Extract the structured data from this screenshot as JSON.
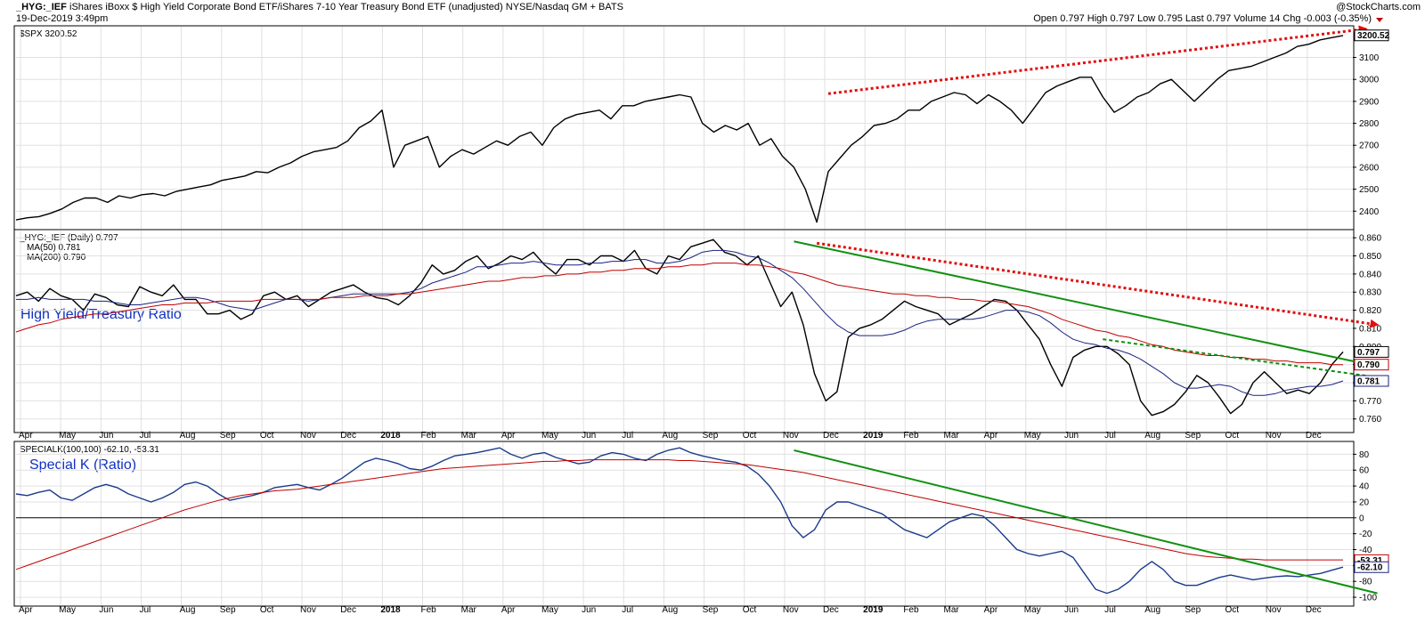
{
  "header": {
    "symbol": "_HYG:_IEF",
    "description": "iShares iBoxx $ High Yield Corporate Bond ETF/iShares 7-10 Year Treasury Bond ETF (unadjusted) NYSE/Nasdaq GM + BATS",
    "datetime": "19-Dec-2019 3:49pm",
    "copyright": "@StockCharts.com",
    "quote": "Open 0.797  High 0.797  Low 0.795  Last 0.797  Volume 14  Chg -0.003 (-0.35%)"
  },
  "colors": {
    "price": "#000000",
    "ma50": "#1a237e",
    "ma200": "#c00000",
    "trend_green": "#109010",
    "trend_red": "#e01010",
    "annotation": "#1030c0",
    "panel_bg": "#ffffff"
  },
  "months": [
    "Apr",
    "May",
    "Jun",
    "Jul",
    "Aug",
    "Sep",
    "Oct",
    "Nov",
    "Dec",
    "2018",
    "Feb",
    "Mar",
    "Apr",
    "May",
    "Jun",
    "Jul",
    "Aug",
    "Sep",
    "Oct",
    "Nov",
    "Dec",
    "2019",
    "Feb",
    "Mar",
    "Apr",
    "May",
    "Jun",
    "Jul",
    "Aug",
    "Sep",
    "Oct",
    "Nov",
    "Dec"
  ],
  "chart_data": [
    {
      "type": "line",
      "panel": "top",
      "legend": "$SPX 3200.52",
      "last_label": "3200.52",
      "yticks": [
        2400,
        2500,
        2600,
        2700,
        2800,
        2900,
        3000,
        3100
      ],
      "ylim": [
        2320,
        3240
      ],
      "series": [
        {
          "name": "$SPX",
          "values": [
            2360,
            2370,
            2375,
            2390,
            2410,
            2440,
            2460,
            2460,
            2440,
            2470,
            2460,
            2475,
            2480,
            2470,
            2490,
            2500,
            2510,
            2520,
            2540,
            2550,
            2560,
            2580,
            2575,
            2600,
            2620,
            2650,
            2670,
            2680,
            2690,
            2720,
            2780,
            2810,
            2860,
            2600,
            2700,
            2720,
            2740,
            2600,
            2650,
            2680,
            2660,
            2690,
            2720,
            2700,
            2740,
            2760,
            2700,
            2780,
            2820,
            2840,
            2850,
            2860,
            2820,
            2880,
            2880,
            2900,
            2910,
            2920,
            2930,
            2920,
            2800,
            2760,
            2790,
            2770,
            2800,
            2700,
            2730,
            2650,
            2600,
            2500,
            2350,
            2580,
            2640,
            2700,
            2740,
            2790,
            2800,
            2820,
            2860,
            2860,
            2900,
            2920,
            2940,
            2930,
            2890,
            2930,
            2900,
            2860,
            2800,
            2870,
            2940,
            2970,
            2990,
            3010,
            3010,
            2920,
            2850,
            2880,
            2920,
            2940,
            2980,
            3000,
            2950,
            2900,
            2950,
            3000,
            3040,
            3050,
            3060,
            3080,
            3100,
            3120,
            3150,
            3160,
            3180,
            3190,
            3200
          ]
        }
      ],
      "trendlines": [
        {
          "color": "red",
          "style": "dotted",
          "from": [
            71,
            2935
          ],
          "to": [
            118,
            3230
          ],
          "arrow": true
        }
      ]
    },
    {
      "type": "line",
      "panel": "middle",
      "legend": "_HYG:_IEF (Daily) 0.797",
      "ma50_label": "MA(50) 0.781",
      "ma200_label": "MA(200) 0.790",
      "last_label": "0.797",
      "ma200_last": "0.790",
      "ma50_last": "0.781",
      "annotation": "High Yield/Treasury Ratio",
      "yticks": [
        0.76,
        0.77,
        0.78,
        0.79,
        0.8,
        0.81,
        0.82,
        0.83,
        0.84,
        0.85,
        0.86
      ],
      "ylim": [
        0.753,
        0.864
      ],
      "series": [
        {
          "name": "_HYG:_IEF",
          "values": [
            0.828,
            0.83,
            0.825,
            0.832,
            0.828,
            0.826,
            0.82,
            0.829,
            0.827,
            0.823,
            0.822,
            0.833,
            0.83,
            0.828,
            0.834,
            0.826,
            0.826,
            0.818,
            0.818,
            0.82,
            0.815,
            0.818,
            0.828,
            0.83,
            0.826,
            0.828,
            0.822,
            0.826,
            0.83,
            0.832,
            0.834,
            0.83,
            0.827,
            0.826,
            0.823,
            0.828,
            0.835,
            0.845,
            0.84,
            0.842,
            0.847,
            0.85,
            0.843,
            0.846,
            0.85,
            0.848,
            0.852,
            0.845,
            0.84,
            0.848,
            0.848,
            0.845,
            0.85,
            0.85,
            0.847,
            0.853,
            0.843,
            0.84,
            0.85,
            0.848,
            0.855,
            0.857,
            0.859,
            0.852,
            0.85,
            0.845,
            0.85,
            0.836,
            0.822,
            0.83,
            0.812,
            0.785,
            0.77,
            0.775,
            0.805,
            0.81,
            0.812,
            0.815,
            0.82,
            0.825,
            0.822,
            0.82,
            0.818,
            0.812,
            0.815,
            0.818,
            0.822,
            0.826,
            0.825,
            0.82,
            0.812,
            0.804,
            0.79,
            0.778,
            0.794,
            0.798,
            0.8,
            0.8,
            0.796,
            0.79,
            0.77,
            0.762,
            0.764,
            0.768,
            0.775,
            0.784,
            0.78,
            0.772,
            0.763,
            0.768,
            0.78,
            0.786,
            0.78,
            0.774,
            0.776,
            0.774,
            0.78,
            0.79,
            0.797
          ]
        },
        {
          "name": "MA(50)",
          "values": [
            0.826,
            0.826,
            0.827,
            0.826,
            0.826,
            0.826,
            0.826,
            0.825,
            0.825,
            0.824,
            0.823,
            0.823,
            0.824,
            0.825,
            0.826,
            0.827,
            0.827,
            0.826,
            0.824,
            0.822,
            0.821,
            0.82,
            0.822,
            0.824,
            0.826,
            0.826,
            0.825,
            0.826,
            0.827,
            0.828,
            0.829,
            0.829,
            0.829,
            0.829,
            0.829,
            0.83,
            0.832,
            0.835,
            0.837,
            0.839,
            0.841,
            0.844,
            0.844,
            0.845,
            0.846,
            0.846,
            0.847,
            0.846,
            0.845,
            0.845,
            0.845,
            0.846,
            0.846,
            0.847,
            0.847,
            0.848,
            0.848,
            0.846,
            0.846,
            0.847,
            0.849,
            0.852,
            0.853,
            0.853,
            0.852,
            0.85,
            0.849,
            0.846,
            0.842,
            0.838,
            0.832,
            0.825,
            0.818,
            0.812,
            0.808,
            0.806,
            0.806,
            0.806,
            0.807,
            0.809,
            0.812,
            0.814,
            0.815,
            0.815,
            0.815,
            0.815,
            0.816,
            0.818,
            0.82,
            0.82,
            0.819,
            0.817,
            0.813,
            0.808,
            0.804,
            0.802,
            0.801,
            0.799,
            0.798,
            0.796,
            0.793,
            0.789,
            0.785,
            0.78,
            0.777,
            0.777,
            0.778,
            0.779,
            0.778,
            0.775,
            0.773,
            0.773,
            0.774,
            0.776,
            0.777,
            0.778,
            0.778,
            0.779,
            0.781
          ]
        },
        {
          "name": "MA(200)",
          "values": [
            0.808,
            0.81,
            0.812,
            0.813,
            0.815,
            0.816,
            0.817,
            0.818,
            0.818,
            0.819,
            0.82,
            0.821,
            0.822,
            0.823,
            0.823,
            0.824,
            0.824,
            0.824,
            0.825,
            0.825,
            0.825,
            0.825,
            0.826,
            0.826,
            0.826,
            0.826,
            0.826,
            0.826,
            0.827,
            0.827,
            0.827,
            0.828,
            0.828,
            0.828,
            0.829,
            0.829,
            0.83,
            0.831,
            0.832,
            0.833,
            0.834,
            0.835,
            0.836,
            0.836,
            0.837,
            0.838,
            0.838,
            0.839,
            0.839,
            0.84,
            0.84,
            0.841,
            0.841,
            0.842,
            0.842,
            0.843,
            0.843,
            0.843,
            0.844,
            0.844,
            0.845,
            0.845,
            0.846,
            0.846,
            0.846,
            0.845,
            0.845,
            0.844,
            0.843,
            0.841,
            0.84,
            0.838,
            0.836,
            0.834,
            0.833,
            0.832,
            0.831,
            0.83,
            0.829,
            0.829,
            0.828,
            0.828,
            0.827,
            0.827,
            0.826,
            0.826,
            0.825,
            0.825,
            0.824,
            0.823,
            0.822,
            0.82,
            0.818,
            0.815,
            0.813,
            0.811,
            0.809,
            0.808,
            0.806,
            0.805,
            0.803,
            0.801,
            0.8,
            0.798,
            0.797,
            0.796,
            0.795,
            0.795,
            0.794,
            0.794,
            0.793,
            0.793,
            0.792,
            0.792,
            0.791,
            0.791,
            0.791,
            0.79,
            0.79
          ]
        }
      ],
      "trendlines": [
        {
          "color": "green",
          "style": "solid",
          "from": [
            68,
            0.858
          ],
          "to": [
            119,
            0.789
          ],
          "arrow": false
        },
        {
          "color": "green",
          "style": "dashed",
          "from": [
            95,
            0.804
          ],
          "to": [
            119,
            0.783
          ],
          "arrow": false
        },
        {
          "color": "red",
          "style": "dotted",
          "from": [
            70,
            0.857
          ],
          "to": [
            119,
            0.812
          ],
          "arrow": true
        }
      ]
    },
    {
      "type": "line",
      "panel": "bottom",
      "legend": "SPECIALK(100,100) -62.10, -53.31",
      "annotation": "Special K (Ratio)",
      "last_label": "-62.10",
      "signal_last": "-53.31",
      "yticks": [
        -100,
        -80,
        -60,
        -40,
        -20,
        0,
        20,
        40,
        60,
        80
      ],
      "ylim": [
        -110,
        95
      ],
      "series": [
        {
          "name": "SPECIALK",
          "values": [
            30,
            28,
            32,
            35,
            25,
            22,
            30,
            38,
            42,
            38,
            30,
            25,
            20,
            25,
            32,
            42,
            45,
            40,
            30,
            22,
            25,
            28,
            32,
            38,
            40,
            42,
            38,
            35,
            42,
            50,
            60,
            70,
            75,
            72,
            68,
            62,
            60,
            65,
            72,
            78,
            80,
            82,
            85,
            88,
            80,
            75,
            80,
            82,
            76,
            72,
            68,
            70,
            78,
            82,
            80,
            75,
            72,
            80,
            85,
            88,
            82,
            78,
            75,
            72,
            70,
            65,
            55,
            40,
            20,
            -10,
            -25,
            -15,
            10,
            20,
            20,
            15,
            10,
            5,
            -5,
            -15,
            -20,
            -25,
            -15,
            -5,
            0,
            5,
            2,
            -10,
            -25,
            -40,
            -45,
            -48,
            -45,
            -42,
            -50,
            -70,
            -90,
            -95,
            -90,
            -80,
            -65,
            -55,
            -65,
            -80,
            -85,
            -85,
            -80,
            -75,
            -72,
            -75,
            -78,
            -76,
            -74,
            -73,
            -74,
            -72,
            -70,
            -66,
            -62
          ]
        },
        {
          "name": "Signal",
          "values": [
            -65,
            -60,
            -55,
            -50,
            -45,
            -40,
            -35,
            -30,
            -25,
            -20,
            -15,
            -10,
            -5,
            0,
            5,
            10,
            14,
            18,
            22,
            25,
            28,
            30,
            32,
            34,
            35,
            36,
            38,
            40,
            42,
            44,
            46,
            48,
            50,
            52,
            54,
            56,
            58,
            60,
            62,
            63,
            64,
            65,
            66,
            67,
            68,
            69,
            70,
            71,
            71,
            72,
            72,
            73,
            73,
            73,
            73,
            73,
            73,
            73,
            73,
            72,
            72,
            71,
            70,
            69,
            68,
            67,
            65,
            63,
            61,
            59,
            57,
            54,
            51,
            48,
            45,
            42,
            39,
            36,
            33,
            30,
            27,
            24,
            21,
            18,
            15,
            12,
            9,
            6,
            3,
            0,
            -3,
            -6,
            -9,
            -12,
            -15,
            -18,
            -21,
            -24,
            -27,
            -30,
            -33,
            -36,
            -39,
            -42,
            -45,
            -47,
            -49,
            -50,
            -51,
            -52,
            -52,
            -53,
            -53,
            -53,
            -53,
            -53,
            -53,
            -53,
            -53
          ]
        }
      ],
      "trendlines": [
        {
          "color": "green",
          "style": "solid",
          "from": [
            68,
            85
          ],
          "to": [
            119,
            -95
          ],
          "arrow": false
        }
      ]
    }
  ]
}
